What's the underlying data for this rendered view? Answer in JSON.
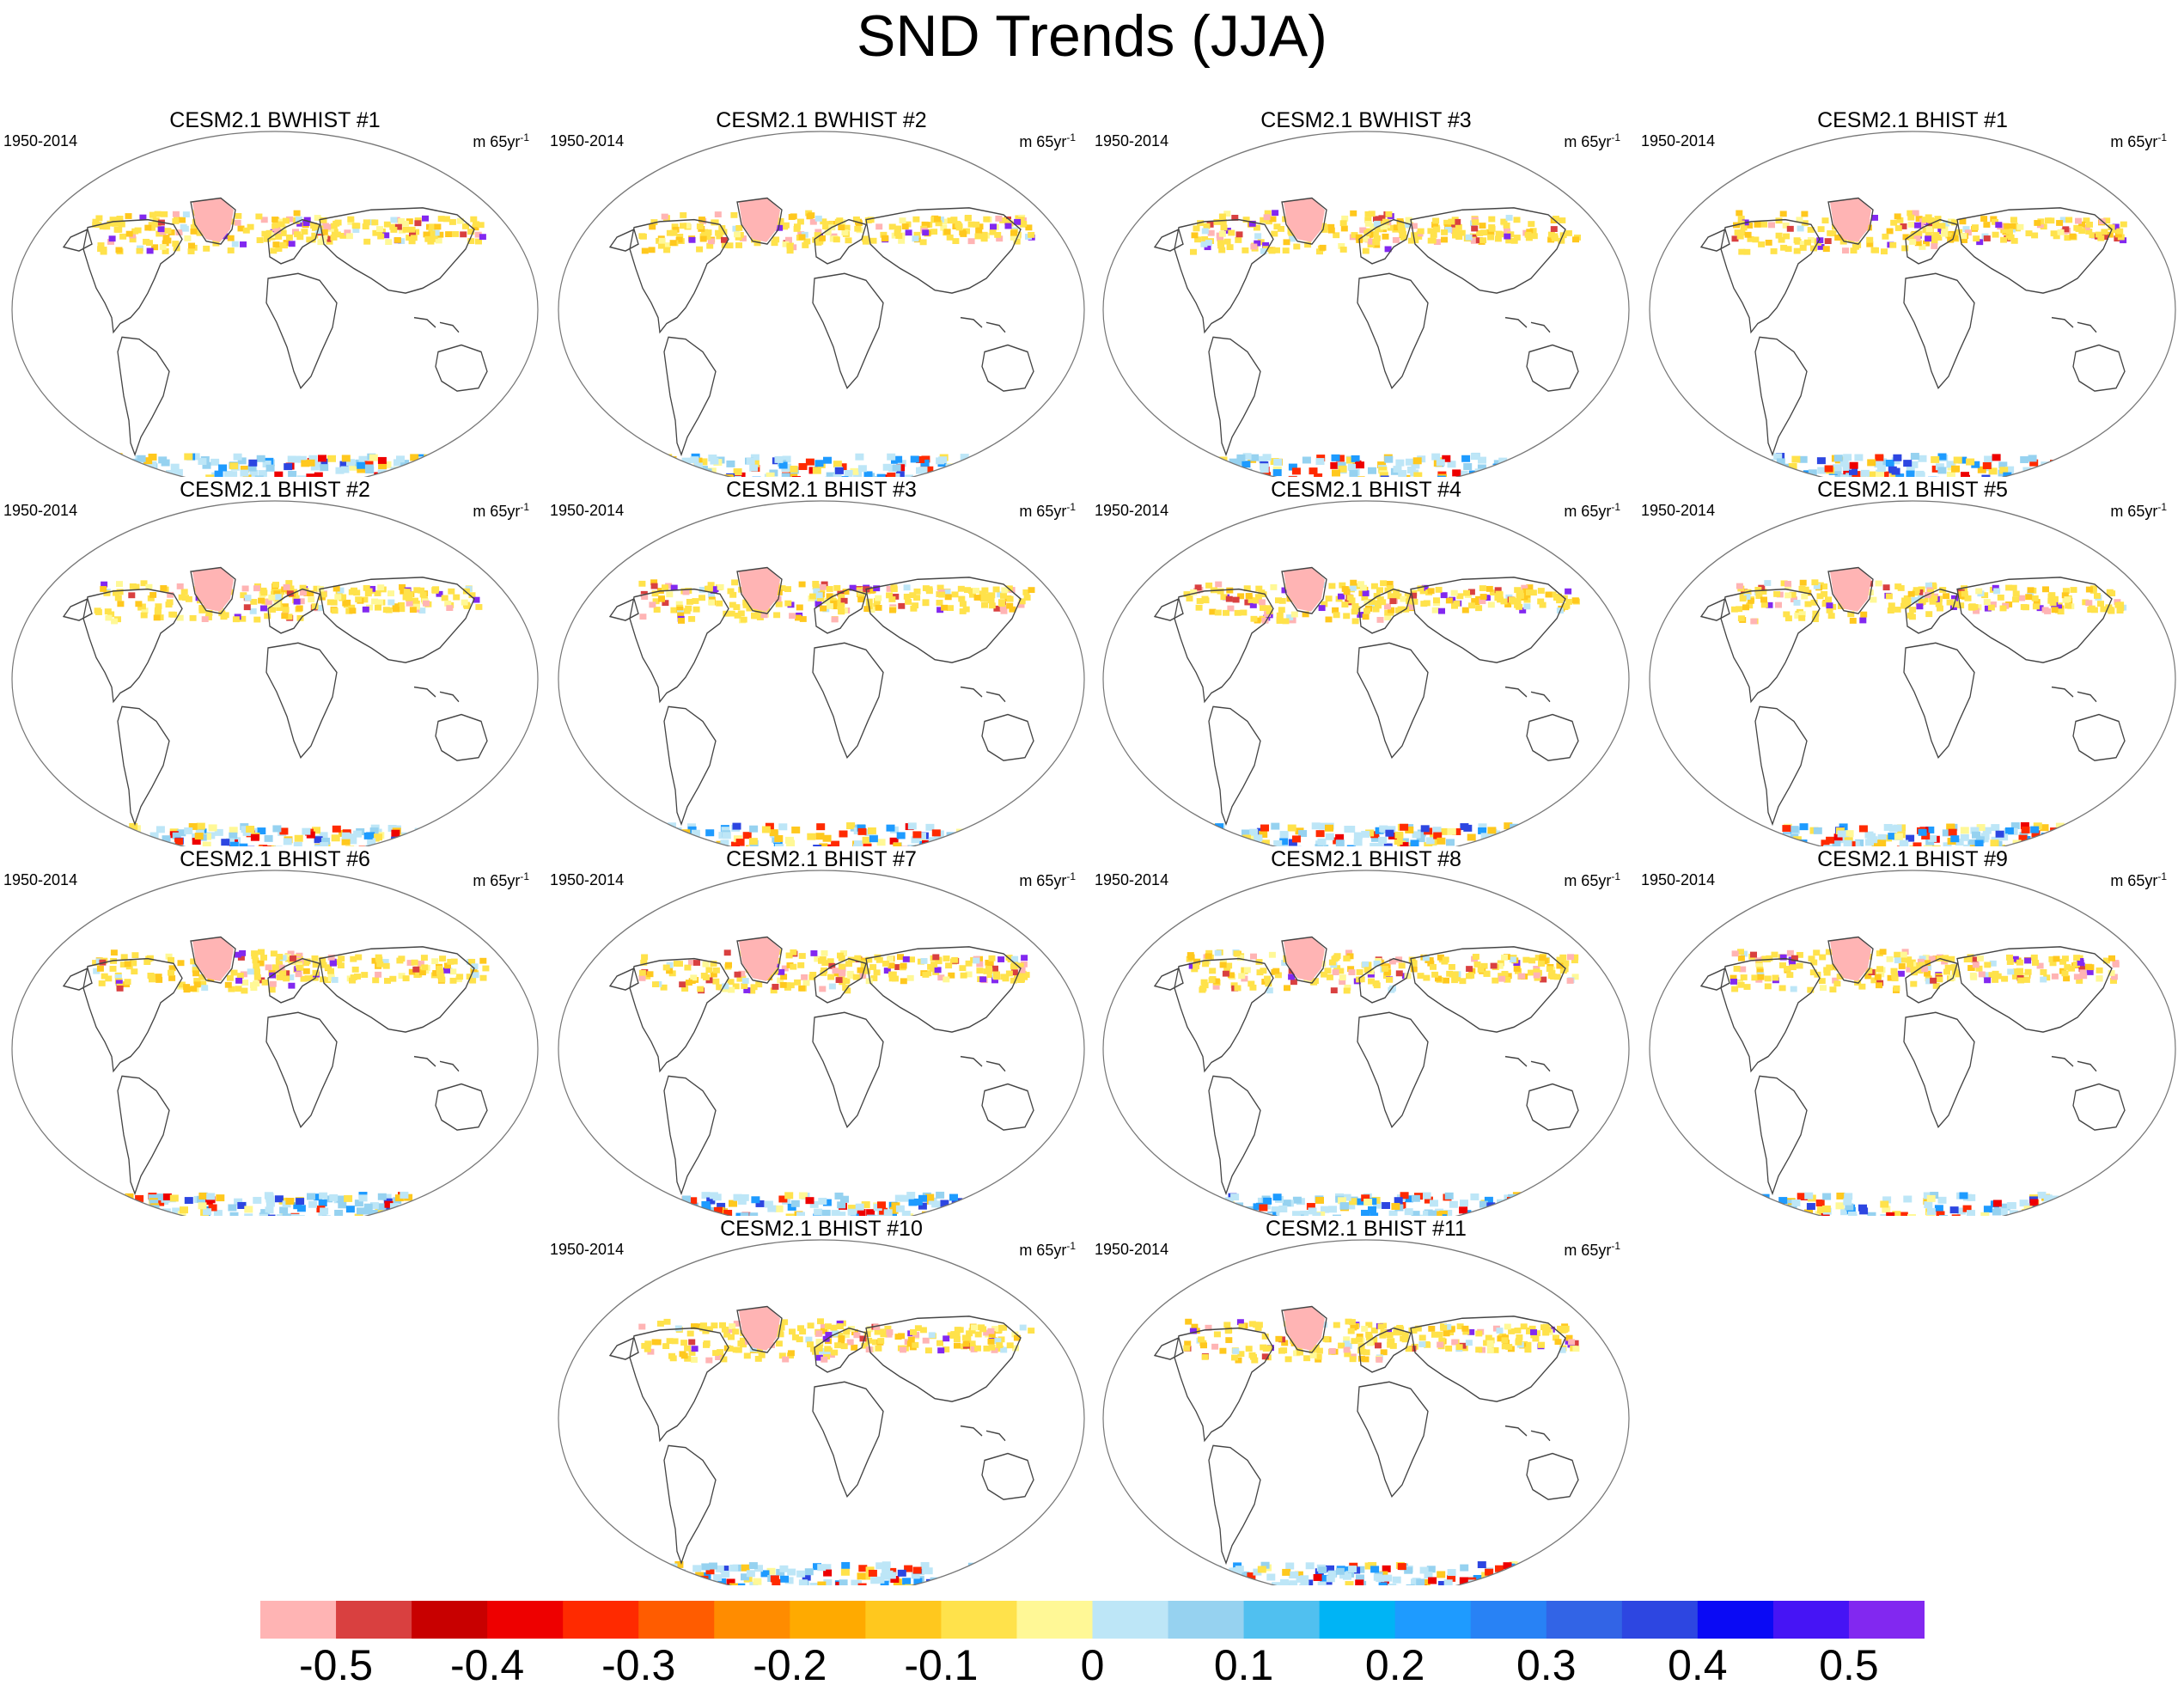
{
  "title": "SND Trends (JJA)",
  "panels": [
    {
      "title": "CESM2.1 BWHIST #1",
      "period": "1950-2014",
      "units_prefix": "m 65yr",
      "units_exp": "-1"
    },
    {
      "title": "CESM2.1 BWHIST #2",
      "period": "1950-2014",
      "units_prefix": "m 65yr",
      "units_exp": "-1"
    },
    {
      "title": "CESM2.1 BWHIST #3",
      "period": "1950-2014",
      "units_prefix": "m 65yr",
      "units_exp": "-1"
    },
    {
      "title": "CESM2.1 BHIST #1",
      "period": "1950-2014",
      "units_prefix": "m 65yr",
      "units_exp": "-1"
    },
    {
      "title": "CESM2.1 BHIST #2",
      "period": "1950-2014",
      "units_prefix": "m 65yr",
      "units_exp": "-1"
    },
    {
      "title": "CESM2.1 BHIST #3",
      "period": "1950-2014",
      "units_prefix": "m 65yr",
      "units_exp": "-1"
    },
    {
      "title": "CESM2.1 BHIST #4",
      "period": "1950-2014",
      "units_prefix": "m 65yr",
      "units_exp": "-1"
    },
    {
      "title": "CESM2.1 BHIST #5",
      "period": "1950-2014",
      "units_prefix": "m 65yr",
      "units_exp": "-1"
    },
    {
      "title": "CESM2.1 BHIST #6",
      "period": "1950-2014",
      "units_prefix": "m 65yr",
      "units_exp": "-1"
    },
    {
      "title": "CESM2.1 BHIST #7",
      "period": "1950-2014",
      "units_prefix": "m 65yr",
      "units_exp": "-1"
    },
    {
      "title": "CESM2.1 BHIST #8",
      "period": "1950-2014",
      "units_prefix": "m 65yr",
      "units_exp": "-1"
    },
    {
      "title": "CESM2.1 BHIST #9",
      "period": "1950-2014",
      "units_prefix": "m 65yr",
      "units_exp": "-1"
    },
    {
      "title": "CESM2.1 BHIST #10",
      "period": "1950-2014",
      "units_prefix": "m 65yr",
      "units_exp": "-1"
    },
    {
      "title": "CESM2.1 BHIST #11",
      "period": "1950-2014",
      "units_prefix": "m 65yr",
      "units_exp": "-1"
    }
  ],
  "colorbar": {
    "colors": [
      "#ffb4b4",
      "#d94040",
      "#c80000",
      "#ee0000",
      "#ff2a00",
      "#ff5c00",
      "#ff8c00",
      "#ffaa00",
      "#ffc81e",
      "#ffe24b",
      "#fff896",
      "#bde6f7",
      "#96d2f0",
      "#50c0f0",
      "#00b4f5",
      "#1e9bff",
      "#2882f5",
      "#3264e6",
      "#2d46e1",
      "#0a0af5",
      "#4614f5",
      "#8228f0"
    ],
    "labels": [
      "-0.5",
      "-0.4",
      "-0.3",
      "-0.2",
      "-0.1",
      "0",
      "0.1",
      "0.2",
      "0.3",
      "0.4",
      "0.5"
    ]
  }
}
